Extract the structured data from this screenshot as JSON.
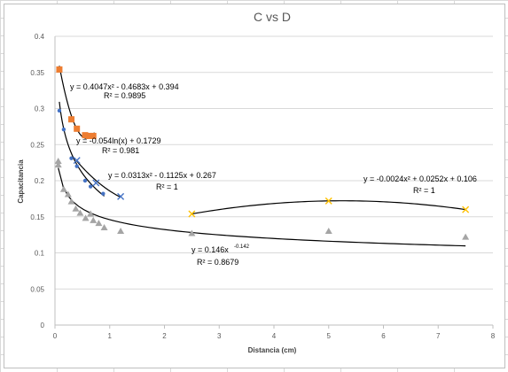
{
  "chart_data": {
    "type": "scatter",
    "title": "C vs D",
    "xlabel": "Distancia (cm)",
    "ylabel": "Capacitancia",
    "xlim": [
      0,
      8
    ],
    "ylim": [
      0,
      0.4
    ],
    "x_ticks": [
      "0",
      "1",
      "2",
      "3",
      "4",
      "5",
      "6",
      "7",
      "8"
    ],
    "y_ticks": [
      "0",
      "0.05",
      "0.1",
      "0.15",
      "0.2",
      "0.25",
      "0.3",
      "0.35",
      "0.4"
    ],
    "grid": "horizontal",
    "legend": "none",
    "colors": {
      "orange": "#ed7d31",
      "blue": "#4472c4",
      "gray": "#a5a5a5",
      "yellow": "#ffc000",
      "trendline": "#000000",
      "gridline": "#d9d9d9",
      "text": "#595959"
    },
    "series": [
      {
        "marker": "square",
        "color": "#ed7d31",
        "points": [
          [
            0.08,
            0.354
          ],
          [
            0.3,
            0.285
          ],
          [
            0.4,
            0.272
          ],
          [
            0.55,
            0.263
          ],
          [
            0.62,
            0.262
          ],
          [
            0.7,
            0.262
          ]
        ]
      },
      {
        "marker": "circle",
        "color": "#4472c4",
        "points": [
          [
            0.08,
            0.297
          ],
          [
            0.16,
            0.271
          ],
          [
            0.3,
            0.231
          ],
          [
            0.4,
            0.22
          ],
          [
            0.55,
            0.2
          ],
          [
            0.65,
            0.192
          ],
          [
            0.88,
            0.182
          ]
        ]
      },
      {
        "marker": "x",
        "color": "#4472c4",
        "points": [
          [
            0.4,
            0.228
          ],
          [
            0.75,
            0.197
          ],
          [
            1.2,
            0.178
          ]
        ]
      },
      {
        "marker": "triangle",
        "color": "#a5a5a5",
        "points": [
          [
            0.06,
            0.227
          ],
          [
            0.06,
            0.222
          ],
          [
            0.16,
            0.188
          ],
          [
            0.24,
            0.181
          ],
          [
            0.3,
            0.171
          ],
          [
            0.38,
            0.161
          ],
          [
            0.46,
            0.155
          ],
          [
            0.56,
            0.148
          ],
          [
            0.65,
            0.154
          ],
          [
            0.7,
            0.145
          ],
          [
            0.8,
            0.141
          ],
          [
            0.9,
            0.135
          ],
          [
            1.2,
            0.13
          ],
          [
            2.5,
            0.127
          ],
          [
            5.0,
            0.13
          ],
          [
            7.5,
            0.122
          ]
        ]
      },
      {
        "marker": "x",
        "color": "#ffc000",
        "points": [
          [
            2.5,
            0.154
          ],
          [
            5.0,
            0.172
          ],
          [
            7.5,
            0.16
          ]
        ]
      }
    ],
    "annotations": [
      {
        "text": "y = 0.4047x² - 0.4683x + 0.394",
        "r2": "R² = 0.9895"
      },
      {
        "text": "y = -0.054ln(x) + 0.1729",
        "r2": "R² = 0.981"
      },
      {
        "text": "y = 0.0313x² - 0.1125x + 0.267",
        "r2": "R² = 1"
      },
      {
        "text": "y = -0.0024x² + 0.0252x + 0.106",
        "r2": "R² = 1"
      },
      {
        "text": "y = 0.146x",
        "exp": "-0.142",
        "r2": "R² = 0.8679"
      }
    ],
    "trendlines": [
      {
        "kind": "poly2",
        "coef": [
          0.4047,
          -0.4683,
          0.394
        ],
        "xrange": [
          0.08,
          0.72
        ]
      },
      {
        "kind": "log",
        "coef": [
          -0.054,
          0.1729
        ],
        "xrange": [
          0.08,
          0.9
        ]
      },
      {
        "kind": "poly2",
        "coef": [
          0.0313,
          -0.1125,
          0.267
        ],
        "xrange": [
          0.4,
          1.2
        ]
      },
      {
        "kind": "poly2",
        "coef": [
          -0.0024,
          0.0252,
          0.106
        ],
        "xrange": [
          2.5,
          7.5
        ]
      },
      {
        "kind": "power",
        "coef": [
          0.146,
          -0.142
        ],
        "xrange": [
          0.06,
          7.5
        ]
      }
    ]
  }
}
